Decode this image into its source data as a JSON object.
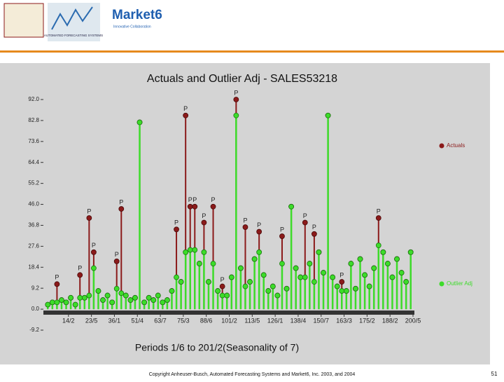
{
  "header": {
    "logo_brand": "Market6",
    "logo_tagline": "Innovative Collaboration",
    "logo_afs": "AUTOMATED FORECASTING SYSTEMS"
  },
  "footer": {
    "copyright": "Copyright Anheuser-Busch, Automated Forecasting Systems and Market6, Inc. 2003, and 2004",
    "page": "51"
  },
  "chart_data": {
    "type": "stem",
    "title": "Actuals and Outlier Adj - SALES53218",
    "x_label": "Periods 1/6 to 201/2(Seasonality of 7)",
    "x": [
      1,
      3,
      5,
      7,
      9,
      11,
      13,
      15,
      17,
      19,
      21,
      23,
      25,
      27,
      29,
      31,
      33,
      35,
      37,
      39,
      41,
      43,
      45,
      47,
      49,
      51,
      53,
      55,
      57,
      59,
      61,
      63,
      65,
      67,
      69,
      71,
      73,
      75,
      77,
      79,
      81,
      83,
      85,
      87,
      89,
      91,
      93,
      95,
      97,
      99,
      101,
      103,
      105,
      107,
      109,
      111,
      113,
      115,
      117,
      119,
      121,
      123,
      125,
      127,
      129,
      131,
      133,
      135,
      137,
      139,
      141,
      143,
      145,
      147,
      149,
      151,
      153,
      155,
      157,
      159
    ],
    "series": [
      {
        "name": "Actuals",
        "color": "#8b1a1a",
        "values": [
          2,
          3,
          11,
          4,
          3,
          5,
          2,
          15,
          5,
          40,
          25,
          8,
          4,
          6,
          3,
          21,
          44,
          6,
          4,
          5,
          82,
          3,
          5,
          4,
          6,
          3,
          4,
          8,
          35,
          12,
          85,
          45,
          45,
          20,
          38,
          12,
          45,
          8,
          10,
          6,
          14,
          92,
          18,
          36,
          12,
          22,
          34,
          15,
          8,
          10,
          6,
          32,
          9,
          45,
          18,
          14,
          38,
          20,
          33,
          25,
          16,
          85,
          14,
          10,
          12,
          8,
          20,
          9,
          22,
          15,
          10,
          18,
          40,
          25,
          20,
          14,
          22,
          16,
          12,
          25
        ],
        "point_labels": [
          null,
          null,
          "P",
          null,
          null,
          null,
          null,
          "P",
          null,
          "P",
          "P",
          null,
          null,
          null,
          null,
          "P",
          "P",
          null,
          null,
          null,
          null,
          null,
          null,
          null,
          null,
          null,
          null,
          null,
          "P",
          null,
          "P",
          "P",
          "P",
          null,
          "P",
          null,
          "P",
          null,
          "P",
          null,
          null,
          "P",
          null,
          "P",
          null,
          null,
          "P",
          null,
          null,
          null,
          null,
          "P",
          null,
          null,
          null,
          null,
          "P",
          null,
          "P",
          null,
          null,
          null,
          null,
          null,
          "P",
          null,
          null,
          null,
          null,
          null,
          null,
          null,
          "P",
          null,
          null,
          null,
          null,
          null,
          null,
          null
        ]
      },
      {
        "name": "Outlier Adj",
        "color": "#3ddc2a",
        "values": [
          2,
          3,
          3,
          4,
          3,
          5,
          2,
          5,
          5,
          6,
          18,
          8,
          4,
          6,
          3,
          9,
          7,
          6,
          4,
          5,
          82,
          3,
          5,
          4,
          6,
          3,
          4,
          8,
          14,
          12,
          25,
          26,
          26,
          20,
          25,
          12,
          20,
          8,
          6,
          6,
          14,
          85,
          18,
          10,
          12,
          22,
          25,
          15,
          8,
          10,
          6,
          20,
          9,
          45,
          18,
          14,
          14,
          20,
          12,
          25,
          16,
          85,
          14,
          10,
          8,
          8,
          20,
          9,
          22,
          15,
          10,
          18,
          28,
          25,
          20,
          14,
          22,
          16,
          12,
          25
        ]
      }
    ],
    "xlim": [
      0,
      160
    ],
    "xticks": [
      {
        "value": 10,
        "label": "14/2"
      },
      {
        "value": 20,
        "label": "23/5"
      },
      {
        "value": 30,
        "label": "36/1"
      },
      {
        "value": 40,
        "label": "51/4"
      },
      {
        "value": 50,
        "label": "63/7"
      },
      {
        "value": 60,
        "label": "75/3"
      },
      {
        "value": 70,
        "label": "88/6"
      },
      {
        "value": 80,
        "label": "101/2"
      },
      {
        "value": 90,
        "label": "113/5"
      },
      {
        "value": 100,
        "label": "126/1"
      },
      {
        "value": 110,
        "label": "138/4"
      },
      {
        "value": 120,
        "label": "150/7"
      },
      {
        "value": 130,
        "label": "163/3"
      },
      {
        "value": 140,
        "label": "175/2"
      },
      {
        "value": 150,
        "label": "188/2"
      },
      {
        "value": 160,
        "label": "200/5"
      }
    ],
    "ylim": [
      -9.2,
      92.0
    ],
    "yticks": [
      {
        "value": 92,
        "label": "92.0"
      },
      82.8,
      73.6,
      64.4,
      55.2,
      {
        "value": 46,
        "label": "46.0"
      },
      36.8,
      27.6,
      18.4,
      9.2,
      {
        "value": 0,
        "label": "0.0"
      },
      -9.2
    ]
  }
}
